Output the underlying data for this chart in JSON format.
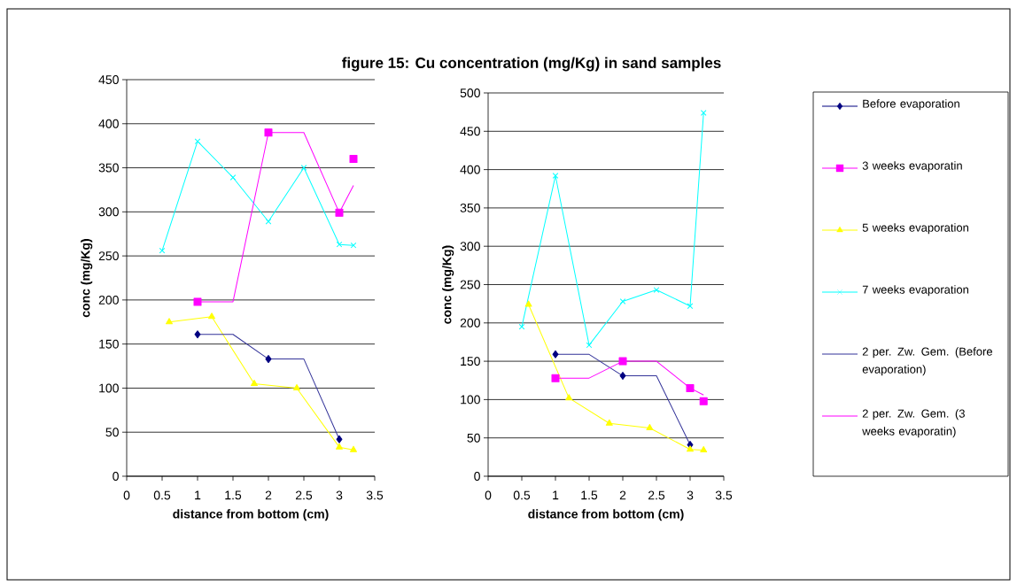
{
  "chart_data": [
    {
      "type": "line",
      "xlabel": "distance from bottom (cm)",
      "ylabel": "conc (mg/Kg)",
      "xlim": [
        0,
        3.5
      ],
      "ylim": [
        0,
        450
      ],
      "xticks": [
        0,
        0.5,
        1,
        1.5,
        2,
        2.5,
        3,
        3.5
      ],
      "yticks": [
        0,
        50,
        100,
        150,
        200,
        250,
        300,
        350,
        400,
        450
      ],
      "grid": "y",
      "legend": false,
      "series": [
        {
          "type": "scatter",
          "color": "#000080",
          "marker": "diamond",
          "x": [
            1,
            2,
            3
          ],
          "values": [
            161,
            133,
            42
          ]
        },
        {
          "type": "scatter",
          "color": "#ff00ff",
          "marker": "square",
          "x": [
            1,
            2,
            3,
            3.2
          ],
          "values": [
            198,
            390,
            299,
            360
          ]
        },
        {
          "color": "#ffff00",
          "marker": "triangle",
          "x": [
            0.6,
            1.2,
            1.8,
            2.4,
            3,
            3.2
          ],
          "values": [
            175,
            181,
            105,
            100,
            33,
            30
          ]
        },
        {
          "color": "#00ffff",
          "marker": "cross",
          "x": [
            0.5,
            1,
            1.5,
            2,
            2.5,
            3,
            3.2
          ],
          "values": [
            256,
            380,
            339,
            289,
            350,
            263,
            262
          ]
        },
        {
          "color": "#333399",
          "marker": "none",
          "x": [
            1,
            1.5,
            2,
            2.5,
            3
          ],
          "values": [
            161,
            161,
            133,
            133,
            42
          ]
        },
        {
          "color": "#ff00ff",
          "marker": "none",
          "x": [
            1,
            1.5,
            2,
            2.5,
            3,
            3.2
          ],
          "values": [
            198,
            198,
            390,
            390,
            299,
            330
          ]
        }
      ]
    },
    {
      "type": "line",
      "title": "figure 15: Cu concentration (mg/Kg) in sand samples",
      "xlabel": "distance from bottom (cm)",
      "ylabel": "conc (mg/Kg)",
      "xlim": [
        0,
        3.5
      ],
      "ylim": [
        0,
        500
      ],
      "xticks": [
        0,
        0.5,
        1,
        1.5,
        2,
        2.5,
        3,
        3.5
      ],
      "yticks": [
        0,
        50,
        100,
        150,
        200,
        250,
        300,
        350,
        400,
        450,
        500
      ],
      "grid": "y",
      "legend": "right",
      "series": [
        {
          "name": "Before evaporation",
          "type": "scatter",
          "color": "#000080",
          "marker": "diamond",
          "x": [
            1,
            2,
            3
          ],
          "values": [
            159,
            131,
            41
          ]
        },
        {
          "name": "3 weeks evaporatin",
          "type": "scatter",
          "color": "#ff00ff",
          "marker": "square",
          "x": [
            1,
            2,
            3,
            3.2
          ],
          "values": [
            128,
            150,
            115,
            98
          ]
        },
        {
          "name": "5 weeks evaporation",
          "color": "#ffff00",
          "marker": "triangle",
          "x": [
            0.6,
            1.2,
            1.8,
            2.4,
            3,
            3.2
          ],
          "values": [
            224,
            102,
            69,
            63,
            35,
            34
          ]
        },
        {
          "name": "7 weeks evaporation",
          "color": "#00ffff",
          "marker": "cross",
          "x": [
            0.5,
            1,
            1.5,
            2,
            2.5,
            3,
            3.2
          ],
          "values": [
            195,
            392,
            171,
            228,
            243,
            222,
            474
          ]
        },
        {
          "name": "2 per. Zw. Gem. (Before evaporation)",
          "color": "#333399",
          "marker": "none",
          "x": [
            1,
            1.5,
            2,
            2.5,
            3
          ],
          "values": [
            159,
            159,
            131,
            131,
            41
          ]
        },
        {
          "name": "2 per. Zw. Gem. (3 weeks evaporatin)",
          "color": "#ff00ff",
          "marker": "none",
          "x": [
            1,
            1.5,
            2,
            2.5,
            3,
            3.2
          ],
          "values": [
            128,
            128,
            150,
            150,
            115,
            106
          ]
        }
      ]
    }
  ]
}
